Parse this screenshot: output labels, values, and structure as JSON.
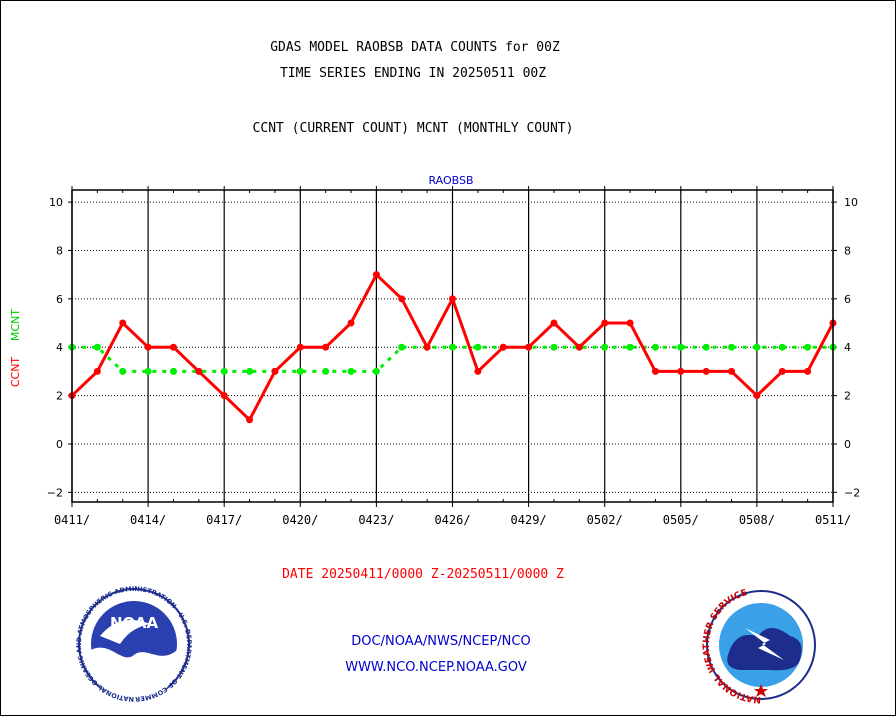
{
  "header": {
    "title_line1": "GDAS MODEL RAOBSB DATA COUNTS for 00Z",
    "title_line2": "TIME SERIES ENDING IN 20250511 00Z",
    "subtitle": "CCNT (CURRENT COUNT) MCNT (MONTHLY COUNT)"
  },
  "footer": {
    "date_range": "DATE 20250411/0000 Z-20250511/0000 Z",
    "org": "DOC/NOAA/NWS/NCEP/NCO",
    "url": "WWW.NCO.NCEP.NOAA.GOV"
  },
  "logos": {
    "noaa_text": "NOAA",
    "noaa_ring_text": "NATIONAL OCEANIC AND ATMOSPHERIC ADMINISTRATION · U.S. DEPARTMENT OF COMMERCE ·",
    "nws_ring_text": "NATIONAL WEATHER SERVICE"
  },
  "colors": {
    "ccnt": "#ff0000",
    "mcnt": "#00ee00",
    "label_blue": "#0000cc",
    "footer_red": "#ff0000",
    "footer_blue": "#0000cc"
  },
  "chart_data": {
    "type": "line",
    "title": "RAOBSB",
    "ylabel_ccnt": "CCNT",
    "ylabel_mcnt": "MCNT",
    "ylim": [
      -2.4,
      10.5
    ],
    "yticks": [
      -2,
      0,
      2,
      4,
      6,
      8,
      10
    ],
    "x_tick_labels": [
      "0411/",
      "0414/",
      "0417/",
      "0420/",
      "0423/",
      "0426/",
      "0429/",
      "0502/",
      "0505/",
      "0508/",
      "0511/"
    ],
    "x_tick_index": [
      0,
      3,
      6,
      9,
      12,
      15,
      18,
      21,
      24,
      27,
      30
    ],
    "grid": true,
    "series": [
      {
        "name": "CCNT",
        "values": [
          2,
          3,
          5,
          4,
          4,
          3,
          2,
          1,
          3,
          4,
          4,
          5,
          7,
          6,
          4,
          6,
          3,
          4,
          4,
          5,
          4,
          5,
          5,
          3,
          3,
          3,
          3,
          2,
          3,
          3,
          5
        ]
      },
      {
        "name": "MCNT",
        "values": [
          4,
          4,
          3,
          3,
          3,
          3,
          3,
          3,
          3,
          3,
          3,
          3,
          3,
          4,
          4,
          4,
          4,
          4,
          4,
          4,
          4,
          4,
          4,
          4,
          4,
          4,
          4,
          4,
          4,
          4,
          4
        ]
      }
    ]
  }
}
